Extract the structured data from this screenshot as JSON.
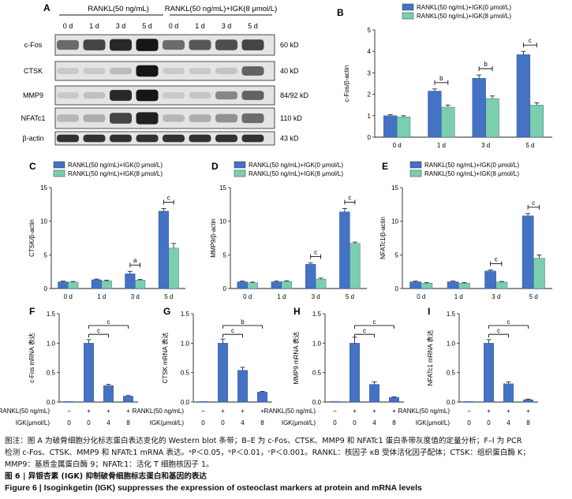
{
  "colors": {
    "blue": "#4472c4",
    "green": "#7bcfae",
    "sig": "#111111"
  },
  "western": {
    "panel": "A",
    "group1": "RANKL(50 ng/mL)",
    "group2": "RANKL(50 ng/mL)+IGK(8 μmol/L)",
    "days": [
      "0 d",
      "1 d",
      "3 d",
      "5 d",
      "0 d",
      "1 d",
      "3 d",
      "5 d"
    ],
    "rows": [
      {
        "name": "c-Fos",
        "kd": "60 kD",
        "int": [
          0.55,
          0.75,
          0.9,
          1.0,
          0.55,
          0.65,
          0.7,
          0.75
        ]
      },
      {
        "name": "CTSK",
        "kd": "40 kD",
        "int": [
          0.05,
          0.05,
          0.12,
          1.0,
          0.05,
          0.05,
          0.08,
          0.6
        ]
      },
      {
        "name": "MMP9",
        "kd": "84/92 kD",
        "int": [
          0.05,
          0.1,
          0.9,
          1.0,
          0.05,
          0.08,
          0.4,
          0.6
        ]
      },
      {
        "name": "NFATc1",
        "kd": "110 kD",
        "int": [
          0.15,
          0.2,
          0.75,
          0.95,
          0.15,
          0.2,
          0.35,
          0.55
        ]
      },
      {
        "name": "β-actin",
        "kd": "43 kD",
        "int": [
          0.85,
          0.85,
          0.85,
          0.85,
          0.85,
          0.85,
          0.85,
          0.85
        ]
      }
    ]
  },
  "chart_data": [
    {
      "panel": "B",
      "type": "bar",
      "ylabel": "c-Fos/β-actin",
      "categories": [
        "0 d",
        "1 d",
        "3 d",
        "5 d"
      ],
      "ylim": [
        0,
        5
      ],
      "yticks": [
        "0",
        "1",
        "2",
        "3",
        "4",
        "5"
      ],
      "series": [
        {
          "name": "RANKL(50 ng/mL)+IGK(0 μmol/L)",
          "values": [
            1.0,
            2.15,
            2.75,
            3.85
          ],
          "err": [
            0.05,
            0.1,
            0.15,
            0.15
          ]
        },
        {
          "name": "RANKL(50 ng/mL)+IGK(8 μmol/L)",
          "values": [
            0.95,
            1.4,
            1.8,
            1.5
          ],
          "err": [
            0.05,
            0.1,
            0.12,
            0.1
          ]
        }
      ],
      "sig": [
        {
          "cat": 1,
          "label": "b"
        },
        {
          "cat": 2,
          "label": "b"
        },
        {
          "cat": 3,
          "label": "c"
        }
      ]
    },
    {
      "panel": "C",
      "type": "bar",
      "ylabel": "CTSK/β-actin",
      "categories": [
        "0 d",
        "1 d",
        "3 d",
        "5 d"
      ],
      "ylim": [
        0,
        15
      ],
      "yticks": [
        "0",
        "5",
        "10",
        "15"
      ],
      "series": [
        {
          "name": "RANKL(50 ng/mL)+IGK(0 μmol/L)",
          "values": [
            1.0,
            1.3,
            2.2,
            11.5
          ],
          "err": [
            0.1,
            0.1,
            0.35,
            0.4
          ]
        },
        {
          "name": "RANKL(50 ng/mL)+IGK(8 μmol/L)",
          "values": [
            0.95,
            1.15,
            1.25,
            6.0
          ],
          "err": [
            0.1,
            0.1,
            0.1,
            0.7
          ]
        }
      ],
      "sig": [
        {
          "cat": 2,
          "label": "a"
        },
        {
          "cat": 3,
          "label": "c"
        }
      ]
    },
    {
      "panel": "D",
      "type": "bar",
      "ylabel": "MMP9/β-actin",
      "categories": [
        "0 d",
        "1 d",
        "3 d",
        "5 d"
      ],
      "ylim": [
        0,
        15
      ],
      "yticks": [
        "0",
        "5",
        "10",
        "15"
      ],
      "series": [
        {
          "name": "RANKL(50 ng/mL)+IGK(0 μmol/L)",
          "values": [
            1.0,
            1.0,
            3.6,
            11.4
          ],
          "err": [
            0.1,
            0.1,
            0.2,
            0.5
          ]
        },
        {
          "name": "RANKL(50 ng/mL)+IGK(8 μmol/L)",
          "values": [
            0.85,
            1.05,
            1.4,
            6.7
          ],
          "err": [
            0.1,
            0.1,
            0.15,
            0.2
          ]
        }
      ],
      "sig": [
        {
          "cat": 2,
          "label": "c"
        },
        {
          "cat": 3,
          "label": "c"
        }
      ]
    },
    {
      "panel": "E",
      "type": "bar",
      "ylabel": "NFATc1/β-actin",
      "categories": [
        "0 d",
        "1 d",
        "3 d",
        "5 d"
      ],
      "ylim": [
        0,
        15
      ],
      "yticks": [
        "0",
        "5",
        "10",
        "15"
      ],
      "series": [
        {
          "name": "RANKL(50 ng/mL)+IGK(0 μmol/L)",
          "values": [
            1.0,
            1.0,
            2.6,
            10.8
          ],
          "err": [
            0.1,
            0.1,
            0.15,
            0.35
          ]
        },
        {
          "name": "RANKL(50 ng/mL)+IGK(8 μmol/L)",
          "values": [
            0.8,
            0.8,
            0.95,
            4.5
          ],
          "err": [
            0.1,
            0.1,
            0.1,
            0.5
          ]
        }
      ],
      "sig": [
        {
          "cat": 2,
          "label": "c"
        },
        {
          "cat": 3,
          "label": "c"
        }
      ]
    },
    {
      "panel": "F",
      "type": "bar",
      "ylabel": "c-Fos mRNA 表达",
      "ylim": [
        0,
        1.5
      ],
      "yticks": [
        "0.0",
        "0.5",
        "1.0",
        "1.5"
      ],
      "values": [
        0,
        1.0,
        0.28,
        0.1
      ],
      "err": [
        0,
        0.06,
        0.02,
        0.01
      ],
      "sig": [
        "c",
        "c"
      ]
    },
    {
      "panel": "G",
      "type": "bar",
      "ylabel": "CTSK mRNA 表达",
      "ylim": [
        0,
        1.5
      ],
      "yticks": [
        "0.0",
        "0.5",
        "1.0",
        "1.5"
      ],
      "values": [
        0,
        1.0,
        0.54,
        0.17
      ],
      "err": [
        0,
        0.07,
        0.05,
        0.01
      ],
      "sig": [
        "c",
        "b"
      ]
    },
    {
      "panel": "H",
      "type": "bar",
      "ylabel": "MMP9 mRNA 表达",
      "ylim": [
        0,
        1.5
      ],
      "yticks": [
        "0.0",
        "0.5",
        "1.0",
        "1.5"
      ],
      "values": [
        0,
        1.0,
        0.3,
        0.08
      ],
      "err": [
        0,
        0.1,
        0.04,
        0.01
      ],
      "sig": [
        "c",
        "c"
      ]
    },
    {
      "panel": "I",
      "type": "bar",
      "ylabel": "NFATc1 mRNA 表达",
      "ylim": [
        0,
        1.5
      ],
      "yticks": [
        "0.0",
        "0.5",
        "1.0",
        "1.5"
      ],
      "values": [
        0,
        1.0,
        0.31,
        0.04
      ],
      "err": [
        0,
        0.06,
        0.03,
        0.01
      ],
      "sig": [
        "c",
        "c"
      ]
    }
  ],
  "mrna_rows": {
    "rankl_label": "RANKL(50 ng/mL)",
    "rankl_vals": [
      "−",
      "+",
      "+",
      "+"
    ],
    "igk_label": "IGK(μmol/L)",
    "igk_vals": [
      "0",
      "0",
      "4",
      "8"
    ]
  },
  "caption": {
    "line1": "图注：图 A 为破骨细胞分化标志蛋白表达变化的 Western blot 条带；B–E 为 c-Fos、CTSK、MMP9 和 NFATc1 蛋白条带灰度值的定量分析；F–I 为 PCR",
    "line2": "检测 c-Fos、CTSK、MMP9 和 NFATc1 mRNA 表达。ᵃP＜0.05，ᵇP＜0.01，ᶜP＜0.001。RANKL：核因子 κB 受体活化因子配体；CTSK：组织蛋白酶 K；",
    "line3": "MMP9：基质金属蛋白酶 9；NFATc1：活化 T 细胞核因子 1。",
    "title_zh": "图 6 | 异银杏素 (IGK) 抑制破骨细胞标志蛋白和基因的表达",
    "title_en": "Figure 6 | Isoginkgetin (IGK) suppresses the expression of osteoclast markers at protein and mRNA levels"
  }
}
